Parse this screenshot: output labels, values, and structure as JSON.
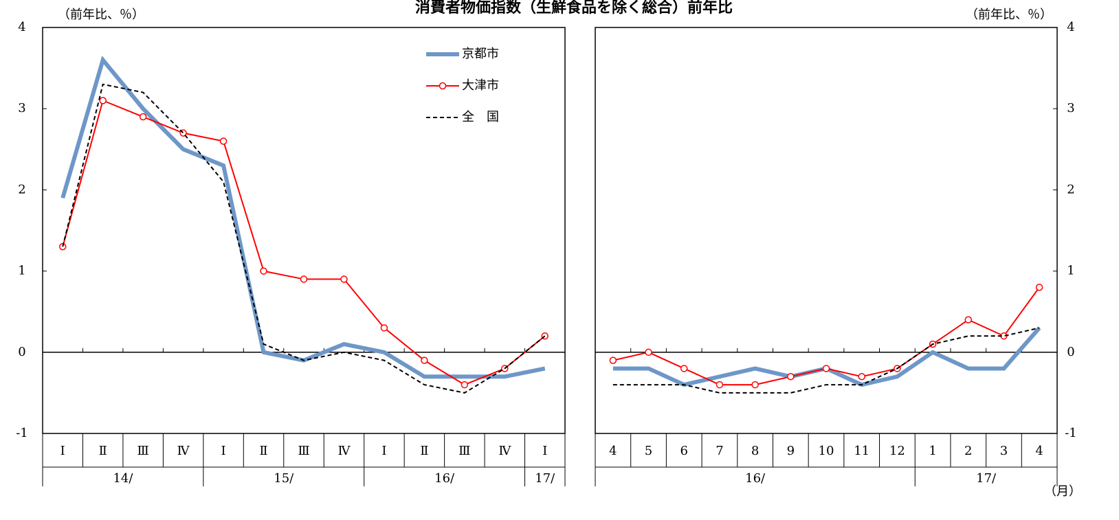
{
  "title": "消費者物価指数（生鮮食品を除く総合）前年比",
  "chart_data": [
    {
      "type": "line",
      "y_label": "（前年比、％）",
      "y_axis_side": "left",
      "legend": "upper right",
      "categories": [
        "Ⅰ",
        "Ⅱ",
        "Ⅲ",
        "Ⅳ",
        "Ⅰ",
        "Ⅱ",
        "Ⅲ",
        "Ⅳ",
        "Ⅰ",
        "Ⅱ",
        "Ⅲ",
        "Ⅳ",
        "Ⅰ"
      ],
      "x_groups": [
        "14/",
        null,
        null,
        null,
        "15/",
        null,
        null,
        null,
        "16/",
        null,
        null,
        null,
        "17/"
      ],
      "ylim": [
        -1,
        4
      ],
      "yticks": [
        -1,
        0,
        1,
        2,
        3,
        4
      ],
      "series": [
        {
          "name": "京都市",
          "color": "#6e97c8",
          "width": 6,
          "dash": "none",
          "marker": false,
          "values": [
            1.9,
            3.6,
            3.0,
            2.5,
            2.3,
            0.0,
            -0.1,
            0.1,
            0.0,
            -0.3,
            -0.3,
            -0.3,
            -0.2
          ]
        },
        {
          "name": "大津市",
          "color": "#ff0000",
          "width": 2,
          "dash": "none",
          "marker": true,
          "values": [
            1.3,
            3.1,
            2.9,
            2.7,
            2.6,
            1.0,
            0.9,
            0.9,
            0.3,
            -0.1,
            -0.4,
            -0.2,
            0.2
          ]
        },
        {
          "name": "全　国",
          "color": "#000000",
          "width": 2,
          "dash": "6 4",
          "marker": false,
          "values": [
            1.3,
            3.3,
            3.2,
            2.7,
            2.1,
            0.1,
            -0.1,
            0.0,
            -0.1,
            -0.4,
            -0.5,
            -0.2,
            0.2
          ]
        }
      ]
    },
    {
      "type": "line",
      "y_label": "（前年比、％）",
      "y_axis_side": "right",
      "x_label": "（月）",
      "categories": [
        "4",
        "5",
        "6",
        "7",
        "8",
        "9",
        "10",
        "11",
        "12",
        "1",
        "2",
        "3",
        "4"
      ],
      "x_groups": [
        "16/",
        null,
        null,
        null,
        null,
        null,
        null,
        null,
        null,
        "17/",
        null,
        null,
        null
      ],
      "ylim": [
        -1,
        4
      ],
      "yticks": [
        -1,
        0,
        1,
        2,
        3,
        4
      ],
      "series": [
        {
          "color": "#6e97c8",
          "width": 6,
          "dash": "none",
          "marker": false,
          "values": [
            -0.2,
            -0.2,
            -0.4,
            -0.3,
            -0.2,
            -0.3,
            -0.2,
            -0.4,
            -0.3,
            0.0,
            -0.2,
            -0.2,
            0.3
          ]
        },
        {
          "color": "#ff0000",
          "width": 2,
          "dash": "none",
          "marker": true,
          "values": [
            -0.1,
            0.0,
            -0.2,
            -0.4,
            -0.4,
            -0.3,
            -0.2,
            -0.3,
            -0.2,
            0.1,
            0.4,
            0.2,
            0.8
          ]
        },
        {
          "color": "#000000",
          "width": 2,
          "dash": "6 4",
          "marker": false,
          "values": [
            -0.4,
            -0.4,
            -0.4,
            -0.5,
            -0.5,
            -0.5,
            -0.4,
            -0.4,
            -0.2,
            0.1,
            0.2,
            0.2,
            0.3
          ]
        }
      ]
    }
  ]
}
